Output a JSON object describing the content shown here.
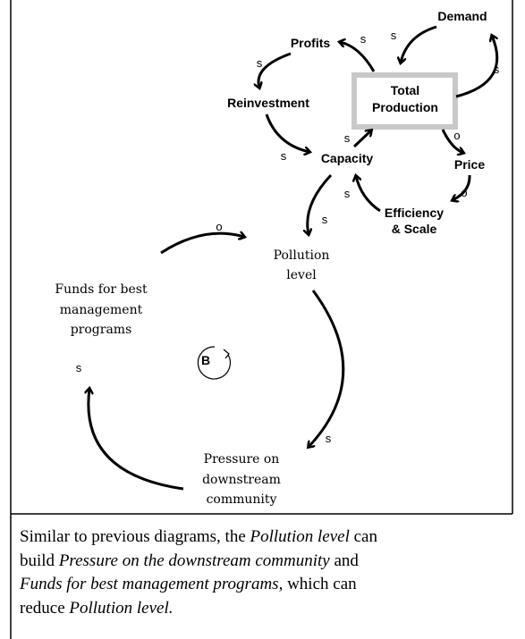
{
  "nodes": [
    {
      "id": "demand",
      "label": [
        "Demand"
      ]
    },
    {
      "id": "profits",
      "label": [
        "Profits"
      ]
    },
    {
      "id": "total",
      "label": [
        "Total",
        "Production"
      ]
    },
    {
      "id": "reinvest",
      "label": [
        "Reinvestment"
      ]
    },
    {
      "id": "capacity",
      "label": [
        "Capacity"
      ]
    },
    {
      "id": "price",
      "label": [
        "Price"
      ]
    },
    {
      "id": "efficiency",
      "label": [
        "Efficiency",
        "& Scale"
      ]
    },
    {
      "id": "pollution",
      "label": [
        "Pollution",
        "level"
      ]
    },
    {
      "id": "funds",
      "label": [
        "Funds for best",
        "management",
        "programs"
      ]
    },
    {
      "id": "pressure",
      "label": [
        "Pressure on",
        "downstream",
        "community"
      ]
    }
  ],
  "loop_label": "B",
  "polarities": [
    "s",
    "s",
    "s",
    "s",
    "s",
    "s",
    "o",
    "o",
    "s",
    "s",
    "o",
    "s",
    "s"
  ],
  "caption": {
    "lines": [
      [
        {
          "text": "Similar to previous diagrams, the ",
          "italic": false
        },
        {
          "text": "Pollution level",
          "italic": true
        },
        {
          "text": " can",
          "italic": false
        }
      ],
      [
        {
          "text": "build ",
          "italic": false
        },
        {
          "text": "Pressure on the downstream community",
          "italic": true
        },
        {
          "text": " and",
          "italic": false
        }
      ],
      [
        {
          "text": "Funds for best management programs,",
          "italic": true
        },
        {
          "text": " which can",
          "italic": false
        }
      ],
      [
        {
          "text": "reduce ",
          "italic": false
        },
        {
          "text": "Pollution level.",
          "italic": true
        }
      ]
    ]
  }
}
